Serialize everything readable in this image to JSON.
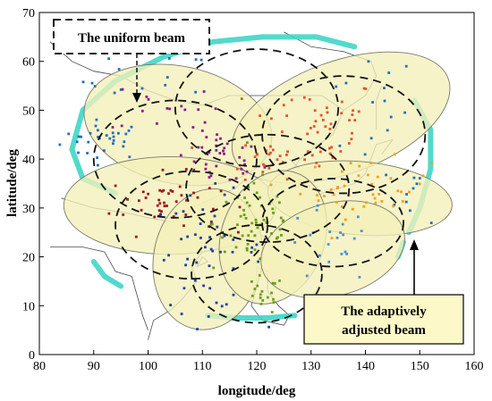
{
  "chart_data": {
    "type": "scatter",
    "xlabel": "longitude/deg",
    "ylabel": "latitude/deg",
    "xlim": [
      80,
      160
    ],
    "ylim": [
      0,
      70
    ],
    "xticks": [
      "80",
      "90",
      "100",
      "110",
      "120",
      "130",
      "140",
      "150",
      "160"
    ],
    "yticks": [
      "0",
      "10",
      "20",
      "30",
      "40",
      "50",
      "60",
      "70"
    ],
    "grid": false,
    "annotations": {
      "uniform": "The uniform beam",
      "adaptive_line1": "The adaptively",
      "adaptive_line2": "adjusted beam"
    },
    "colors": {
      "adaptive_fill": "#f3f0b8",
      "adaptive_edge": "#7a7a6a",
      "envelope": "#3fd6c6",
      "uniform": "#111111",
      "annotation_bg": "#fdf8c8",
      "map": "#4a4a4a"
    },
    "adaptive_beams": [
      {
        "cx": 105.5,
        "cy": 47.0,
        "rx": 17.5,
        "ry": 12.0,
        "rot": -12
      },
      {
        "cx": 135.5,
        "cy": 48.5,
        "rx": 21.0,
        "ry": 11.5,
        "rot": 20
      },
      {
        "cx": 104.0,
        "cy": 30.5,
        "rx": 19.5,
        "ry": 10.0,
        "rot": 0
      },
      {
        "cx": 139.0,
        "cy": 32.0,
        "rx": 17.0,
        "ry": 7.5,
        "rot": -5
      },
      {
        "cx": 111.0,
        "cy": 19.5,
        "rx": 10.0,
        "ry": 14.5,
        "rot": -10
      },
      {
        "cx": 123.0,
        "cy": 24.0,
        "rx": 9.5,
        "ry": 14.0,
        "rot": -20
      },
      {
        "cx": 134.0,
        "cy": 21.5,
        "rx": 13.5,
        "ry": 9.5,
        "rot": 15
      }
    ],
    "uniform_beams": [
      {
        "cx": 105.0,
        "cy": 40.0,
        "rx": 15.0,
        "ry": 12.0
      },
      {
        "cx": 120.0,
        "cy": 50.5,
        "rx": 15.0,
        "ry": 12.0
      },
      {
        "cx": 136.0,
        "cy": 45.0,
        "rx": 15.0,
        "ry": 12.0
      },
      {
        "cx": 108.0,
        "cy": 26.5,
        "rx": 14.0,
        "ry": 11.0
      },
      {
        "cx": 122.0,
        "cy": 34.0,
        "rx": 15.0,
        "ry": 11.0
      },
      {
        "cx": 134.0,
        "cy": 27.0,
        "rx": 13.0,
        "ry": 9.0
      },
      {
        "cx": 120.0,
        "cy": 16.5,
        "rx": 12.0,
        "ry": 10.0
      }
    ],
    "clusters": [
      {
        "color": "#1f6fc0",
        "cx": 92,
        "cy": 44,
        "sx": 4,
        "sy": 2,
        "n": 30
      },
      {
        "color": "#1f6fc0",
        "cx": 100,
        "cy": 56,
        "sx": 6,
        "sy": 3,
        "n": 14
      },
      {
        "color": "#1f6fc0",
        "cx": 150,
        "cy": 33,
        "sx": 3,
        "sy": 3,
        "n": 10
      },
      {
        "color": "#1f6fc0",
        "cx": 140,
        "cy": 50,
        "sx": 5,
        "sy": 6,
        "n": 14
      },
      {
        "color": "#8b1a8b",
        "cx": 113,
        "cy": 40,
        "sx": 4,
        "sy": 3,
        "n": 38
      },
      {
        "color": "#8b1a8b",
        "cx": 103,
        "cy": 51,
        "sx": 5,
        "sy": 3,
        "n": 14
      },
      {
        "color": "#e2552a",
        "cx": 131,
        "cy": 47,
        "sx": 6,
        "sy": 5,
        "n": 48
      },
      {
        "color": "#e2552a",
        "cx": 122,
        "cy": 40,
        "sx": 4,
        "sy": 2,
        "n": 18
      },
      {
        "color": "#a0141e",
        "cx": 103,
        "cy": 31,
        "sx": 5,
        "sy": 3,
        "n": 45
      },
      {
        "color": "#f0a020",
        "cx": 140,
        "cy": 34,
        "sx": 6,
        "sy": 3,
        "n": 42
      },
      {
        "color": "#2040a8",
        "cx": 111,
        "cy": 21,
        "sx": 5,
        "sy": 6,
        "n": 48
      },
      {
        "color": "#6a9e1e",
        "cx": 120,
        "cy": 27,
        "sx": 4,
        "sy": 5,
        "n": 55
      },
      {
        "color": "#6a9e1e",
        "cx": 121,
        "cy": 12,
        "sx": 2,
        "sy": 2,
        "n": 18
      },
      {
        "color": "#4a90d8",
        "cx": 133,
        "cy": 22,
        "sx": 4,
        "sy": 4,
        "n": 22
      }
    ],
    "envelope_arcs": [
      [
        [
          94,
          33
        ],
        [
          88,
          36
        ],
        [
          86,
          42
        ],
        [
          88,
          50
        ],
        [
          94,
          56
        ],
        [
          103,
          61
        ],
        [
          112,
          64
        ],
        [
          121,
          65
        ],
        [
          131,
          65
        ],
        [
          138,
          63
        ]
      ],
      [
        [
          149,
          52
        ],
        [
          152,
          46
        ],
        [
          152,
          38
        ],
        [
          150,
          30
        ],
        [
          148,
          25
        ]
      ],
      [
        [
          111,
          8
        ],
        [
          116,
          7.5
        ],
        [
          122,
          7.5
        ],
        [
          127,
          8
        ]
      ],
      [
        [
          147,
          23
        ],
        [
          146,
          20
        ]
      ],
      [
        [
          90,
          19
        ],
        [
          92,
          16
        ],
        [
          95,
          14
        ]
      ]
    ],
    "map_lines": [
      [
        [
          82,
          64
        ],
        [
          86,
          60
        ],
        [
          90,
          58
        ],
        [
          95,
          57
        ],
        [
          100,
          54
        ],
        [
          105,
          52
        ],
        [
          110,
          51
        ],
        [
          115,
          53
        ],
        [
          120,
          53
        ],
        [
          126,
          53
        ],
        [
          132,
          53
        ],
        [
          136,
          50
        ],
        [
          134,
          45
        ],
        [
          130,
          42
        ],
        [
          128,
          40
        ],
        [
          126,
          37
        ],
        [
          124,
          36
        ],
        [
          122,
          32
        ],
        [
          121,
          28
        ],
        [
          119,
          24
        ],
        [
          115,
          22
        ],
        [
          110,
          21
        ],
        [
          108,
          18
        ],
        [
          109,
          15
        ],
        [
          106,
          11
        ],
        [
          104,
          9
        ],
        [
          101,
          7
        ],
        [
          100,
          3
        ]
      ],
      [
        [
          82,
          22
        ],
        [
          88,
          22
        ],
        [
          92,
          21
        ],
        [
          94,
          17
        ],
        [
          97,
          16
        ],
        [
          98,
          12
        ],
        [
          99,
          8
        ],
        [
          100,
          5
        ]
      ],
      [
        [
          126,
          40
        ],
        [
          128,
          38
        ],
        [
          129,
          35
        ],
        [
          127,
          34
        ],
        [
          126,
          37
        ]
      ],
      [
        [
          130,
          31
        ],
        [
          132,
          33
        ],
        [
          135,
          34
        ],
        [
          138,
          35
        ],
        [
          140,
          37
        ],
        [
          141,
          40
        ],
        [
          142,
          43
        ],
        [
          145,
          44
        ],
        [
          143,
          41
        ]
      ],
      [
        [
          120,
          25
        ],
        [
          121.5,
          24
        ],
        [
          121,
          22
        ],
        [
          120,
          23
        ],
        [
          120,
          25
        ]
      ],
      [
        [
          110,
          20
        ],
        [
          111,
          19
        ],
        [
          109,
          18
        ],
        [
          110,
          20
        ]
      ],
      [
        [
          120,
          18
        ],
        [
          122,
          17
        ],
        [
          122,
          13
        ],
        [
          124,
          10
        ],
        [
          126,
          8
        ],
        [
          125,
          6
        ],
        [
          121,
          7
        ],
        [
          119,
          10
        ],
        [
          120,
          14
        ],
        [
          120,
          18
        ]
      ],
      [
        [
          136,
          50
        ],
        [
          140,
          53
        ],
        [
          142,
          57
        ],
        [
          141,
          60
        ],
        [
          136,
          62
        ],
        [
          130,
          63
        ],
        [
          125,
          66
        ]
      ],
      [
        [
          142,
          46
        ],
        [
          142,
          52
        ],
        [
          143,
          55
        ]
      ],
      [
        [
          84,
          32
        ],
        [
          90,
          30
        ],
        [
          96,
          29
        ],
        [
          100,
          28
        ],
        [
          105,
          27
        ],
        [
          108,
          30
        ],
        [
          112,
          32
        ],
        [
          116,
          34
        ],
        [
          118,
          36
        ]
      ]
    ]
  }
}
